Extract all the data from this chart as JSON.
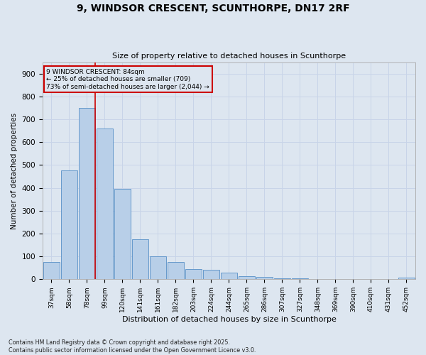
{
  "title": "9, WINDSOR CRESCENT, SCUNTHORPE, DN17 2RF",
  "subtitle": "Size of property relative to detached houses in Scunthorpe",
  "xlabel": "Distribution of detached houses by size in Scunthorpe",
  "ylabel": "Number of detached properties",
  "bar_labels": [
    "37sqm",
    "58sqm",
    "78sqm",
    "99sqm",
    "120sqm",
    "141sqm",
    "161sqm",
    "182sqm",
    "203sqm",
    "224sqm",
    "244sqm",
    "265sqm",
    "286sqm",
    "307sqm",
    "327sqm",
    "348sqm",
    "369sqm",
    "390sqm",
    "410sqm",
    "431sqm",
    "452sqm"
  ],
  "bar_values": [
    75,
    477,
    750,
    660,
    397,
    175,
    101,
    75,
    44,
    43,
    28,
    13,
    10,
    5,
    3,
    2,
    1,
    0,
    0,
    0,
    7
  ],
  "bar_color": "#b8cfe8",
  "bar_edge_color": "#6699cc",
  "grid_color": "#c8d4e8",
  "bg_color": "#dde6f0",
  "vline_color": "#cc0000",
  "vline_pos": 2.45,
  "annotation_text": "9 WINDSOR CRESCENT: 84sqm\n← 25% of detached houses are smaller (709)\n73% of semi-detached houses are larger (2,044) →",
  "annotation_box_color": "#cc0000",
  "footnote": "Contains HM Land Registry data © Crown copyright and database right 2025.\nContains public sector information licensed under the Open Government Licence v3.0.",
  "ylim": [
    0,
    950
  ],
  "yticks": [
    0,
    100,
    200,
    300,
    400,
    500,
    600,
    700,
    800,
    900
  ]
}
